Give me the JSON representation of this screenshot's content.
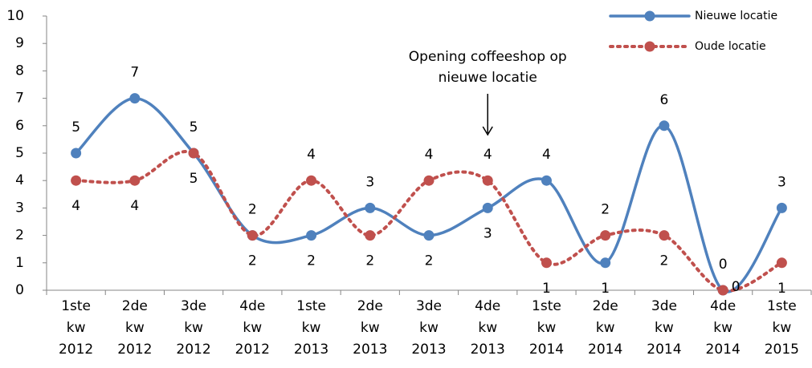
{
  "chart_data": {
    "type": "line",
    "categories": [
      "1ste kw 2012",
      "2de kw 2012",
      "3de kw 2012",
      "4de kw 2012",
      "1ste kw 2013",
      "2de kw 2013",
      "3de kw 2013",
      "4de kw 2013",
      "1ste kw 2014",
      "2de kw 2014",
      "3de kw 2014",
      "4de kw 2014",
      "1ste kw 2015"
    ],
    "series": [
      {
        "name": "Nieuwe locatie",
        "color": "#4f81bd",
        "values": [
          5,
          7,
          5,
          2,
          2,
          3,
          2,
          3,
          4,
          1,
          6,
          0,
          3
        ]
      },
      {
        "name": "Oude locatie",
        "color": "#c0504d",
        "values": [
          4,
          4,
          5,
          2,
          4,
          2,
          4,
          4,
          1,
          2,
          2,
          0,
          1
        ]
      }
    ],
    "ylim": [
      0,
      10
    ],
    "yticks": [
      0,
      1,
      2,
      3,
      4,
      5,
      6,
      7,
      8,
      9,
      10
    ],
    "annotation": {
      "text": "Opening coffeeshop op nieuwe locatie",
      "category_index": 7
    },
    "legend": "top-right"
  }
}
